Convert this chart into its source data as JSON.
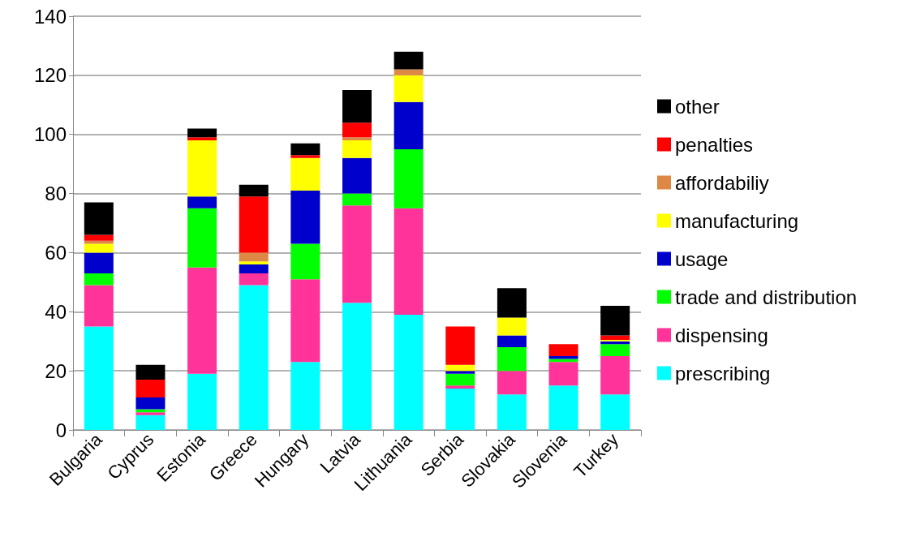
{
  "chart_data": {
    "type": "bar",
    "stacked": true,
    "categories": [
      "Bulgaria",
      "Cyprus",
      "Estonia",
      "Greece",
      "Hungary",
      "Latvia",
      "Lithuania",
      "Serbia",
      "Slovakia",
      "Slovenia",
      "Turkey"
    ],
    "series": [
      {
        "name": "prescribing",
        "color": "#00ffff",
        "values": [
          35,
          5,
          19,
          49,
          23,
          43,
          39,
          14,
          12,
          15,
          12
        ]
      },
      {
        "name": "dispensing",
        "color": "#ff3399",
        "values": [
          14,
          1,
          36,
          4,
          28,
          33,
          36,
          1,
          8,
          8,
          13
        ]
      },
      {
        "name": "trade and distribution",
        "color": "#00ff00",
        "values": [
          4,
          1,
          20,
          0,
          12,
          4,
          20,
          4,
          8,
          1,
          4
        ]
      },
      {
        "name": "usage",
        "color": "#0000cc",
        "values": [
          7,
          4,
          4,
          3,
          18,
          12,
          16,
          1,
          4,
          1,
          1
        ]
      },
      {
        "name": "manufacturing",
        "color": "#ffff00",
        "values": [
          3,
          0,
          19,
          1,
          11,
          6,
          9,
          2,
          6,
          0,
          0.5
        ]
      },
      {
        "name": "affordabiliy",
        "color": "#dd8844",
        "values": [
          1,
          0,
          0,
          3,
          0,
          1,
          2,
          0,
          0,
          0,
          0
        ]
      },
      {
        "name": "penalties",
        "color": "#ff0000",
        "values": [
          2,
          6,
          1,
          19,
          1,
          5,
          0,
          13,
          0,
          4,
          1.5
        ]
      },
      {
        "name": "other",
        "color": "#000000",
        "values": [
          11,
          5,
          3,
          4,
          4,
          11,
          6,
          0,
          10,
          0,
          10
        ]
      }
    ],
    "ylim": [
      0,
      140
    ],
    "yticks": [
      0,
      20,
      40,
      60,
      80,
      100,
      120,
      140
    ],
    "grid": "y",
    "legend": "right"
  }
}
